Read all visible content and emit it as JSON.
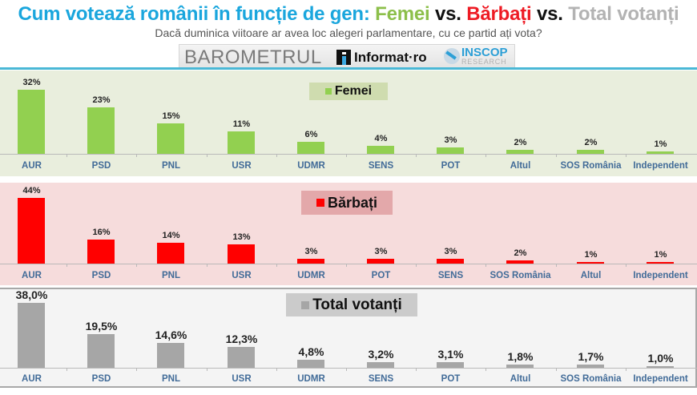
{
  "header": {
    "title_main": "Cum votează românii în funcție de gen: ",
    "title_femei": "Femei",
    "title_vs1": " vs. ",
    "title_barbati": "Bărbați",
    "title_vs2": " vs. ",
    "title_total": "Total votanți",
    "subtitle": "Dacă duminica viitoare ar avea loc alegeri parlamentare, cu ce partid ați vota?",
    "logos": {
      "barometrul": "BAROMETRUL",
      "informat": "Informat·ro",
      "inscop": "INSCOP",
      "research": "RESEARCH"
    }
  },
  "colors": {
    "title_blue": "#1aa6dd",
    "femei": "#92d050",
    "barbati": "#ff0000",
    "total": "#a6a6a6",
    "category_label": "#416b98"
  },
  "chart_data": [
    {
      "type": "bar",
      "title": "Femei",
      "legend": [
        "Femei"
      ],
      "categories": [
        "AUR",
        "PSD",
        "PNL",
        "USR",
        "UDMR",
        "SENS",
        "POT",
        "Altul",
        "SOS România",
        "Independent"
      ],
      "values": [
        32,
        23,
        15,
        11,
        6,
        4,
        3,
        2,
        2,
        1
      ],
      "labels": [
        "32%",
        "23%",
        "15%",
        "11%",
        "6%",
        "4%",
        "3%",
        "2%",
        "2%",
        "1%"
      ],
      "color": "#92d050",
      "ylabel": "",
      "xlabel": "",
      "grid": false
    },
    {
      "type": "bar",
      "title": "Bărbați",
      "legend": [
        "Bărbați"
      ],
      "categories": [
        "AUR",
        "PSD",
        "PNL",
        "USR",
        "UDMR",
        "POT",
        "SENS",
        "SOS România",
        "Altul",
        "Independent"
      ],
      "values": [
        44,
        16,
        14,
        13,
        3,
        3,
        3,
        2,
        1,
        1
      ],
      "labels": [
        "44%",
        "16%",
        "14%",
        "13%",
        "3%",
        "3%",
        "3%",
        "2%",
        "1%",
        "1%"
      ],
      "color": "#ff0000",
      "ylabel": "",
      "xlabel": "",
      "grid": false
    },
    {
      "type": "bar",
      "title": "Total votanți",
      "legend": [
        "Total votanți"
      ],
      "categories": [
        "AUR",
        "PSD",
        "PNL",
        "USR",
        "UDMR",
        "SENS",
        "POT",
        "Altul",
        "SOS România",
        "Independent"
      ],
      "values": [
        38.0,
        19.5,
        14.6,
        12.3,
        4.8,
        3.2,
        3.1,
        1.8,
        1.7,
        1.0
      ],
      "labels": [
        "38,0%",
        "19,5%",
        "14,6%",
        "12,3%",
        "4,8%",
        "3,2%",
        "3,1%",
        "1,8%",
        "1,7%",
        "1,0%"
      ],
      "color": "#a6a6a6",
      "ylabel": "",
      "xlabel": "",
      "grid": false
    }
  ]
}
